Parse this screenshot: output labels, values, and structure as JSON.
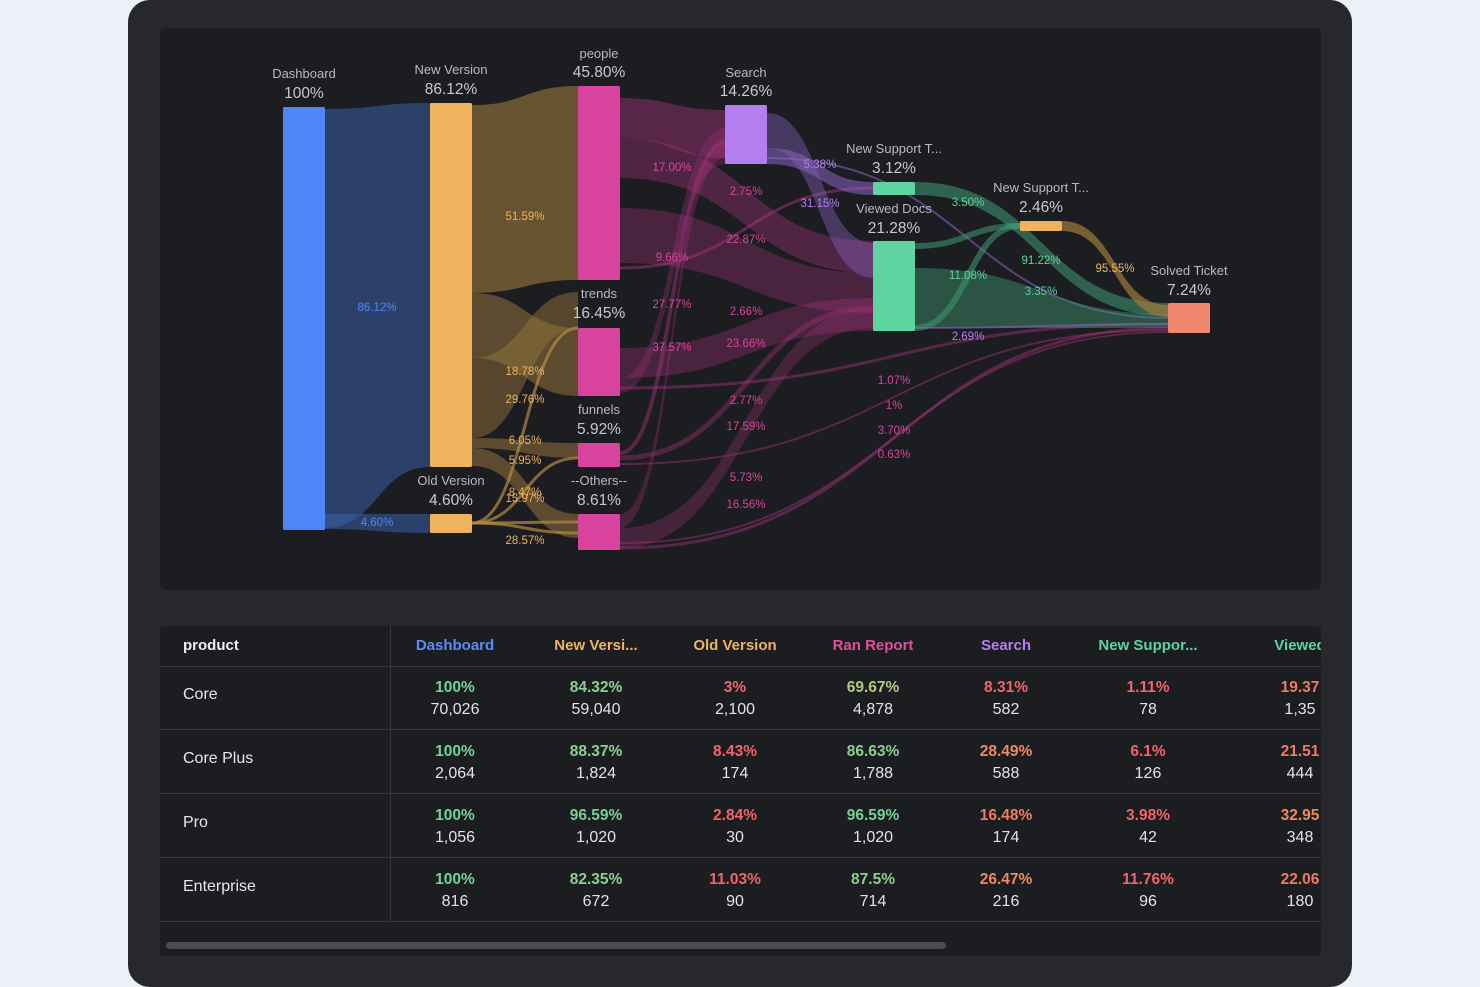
{
  "sankey": {
    "nodes": [
      {
        "id": "dashboard",
        "label": "Dashboard",
        "pct": "100%",
        "color": "#4f86f7"
      },
      {
        "id": "newversion",
        "label": "New Version",
        "pct": "86.12%",
        "color": "#efb35e"
      },
      {
        "id": "oldversion",
        "label": "Old Version",
        "pct": "4.60%",
        "color": "#efb35e"
      },
      {
        "id": "people",
        "label": "people",
        "pct": "45.80%",
        "color": "#d8449d"
      },
      {
        "id": "trends",
        "label": "trends",
        "pct": "16.45%",
        "color": "#d8449d"
      },
      {
        "id": "funnels",
        "label": "funnels",
        "pct": "5.92%",
        "color": "#d8449d"
      },
      {
        "id": "others",
        "label": "--Others--",
        "pct": "8.61%",
        "color": "#d8449d"
      },
      {
        "id": "search",
        "label": "Search",
        "pct": "14.26%",
        "color": "#b57ef0"
      },
      {
        "id": "newsupport1",
        "label": "New Support T...",
        "pct": "3.12%",
        "color": "#5fd3a0"
      },
      {
        "id": "vieweddocs",
        "label": "Viewed Docs",
        "pct": "21.28%",
        "color": "#5fd3a0"
      },
      {
        "id": "newsupport2",
        "label": "New Support T...",
        "pct": "2.46%",
        "color": "#efb35e"
      },
      {
        "id": "solvedticket",
        "label": "Solved Ticket",
        "pct": "7.24%",
        "color": "#ef8670"
      }
    ],
    "link_labels": [
      {
        "text": "86.12%",
        "color": "#4f86f7"
      },
      {
        "text": "4.60%",
        "color": "#4f86f7"
      },
      {
        "text": "51.59%",
        "color": "#efb35e"
      },
      {
        "text": "18.78%",
        "color": "#efb35e"
      },
      {
        "text": "29.76%",
        "color": "#efb35e"
      },
      {
        "text": "6.05%",
        "color": "#efb35e"
      },
      {
        "text": "5.95%",
        "color": "#efb35e"
      },
      {
        "text": "8.47%",
        "color": "#efb35e"
      },
      {
        "text": "15.97%",
        "color": "#efb35e"
      },
      {
        "text": "28.57%",
        "color": "#efb35e"
      },
      {
        "text": "17.00%",
        "color": "#d8449d"
      },
      {
        "text": "9.66%",
        "color": "#d8449d"
      },
      {
        "text": "27.77%",
        "color": "#d8449d"
      },
      {
        "text": "37.57%",
        "color": "#d8449d"
      },
      {
        "text": "2.75%",
        "color": "#d8449d"
      },
      {
        "text": "22.87%",
        "color": "#d8449d"
      },
      {
        "text": "2.66%",
        "color": "#d8449d"
      },
      {
        "text": "23.66%",
        "color": "#d8449d"
      },
      {
        "text": "2.77%",
        "color": "#d8449d"
      },
      {
        "text": "17.59%",
        "color": "#d8449d"
      },
      {
        "text": "5.73%",
        "color": "#d8449d"
      },
      {
        "text": "16.56%",
        "color": "#d8449d"
      },
      {
        "text": "5.38%",
        "color": "#b57ef0"
      },
      {
        "text": "31.15%",
        "color": "#b57ef0"
      },
      {
        "text": "1.07%",
        "color": "#d8449d"
      },
      {
        "text": "1%",
        "color": "#d8449d"
      },
      {
        "text": "3.70%",
        "color": "#d8449d"
      },
      {
        "text": "0.63%",
        "color": "#d8449d"
      },
      {
        "text": "3.50%",
        "color": "#5fd3a0"
      },
      {
        "text": "11.08%",
        "color": "#5fd3a0"
      },
      {
        "text": "91.22%",
        "color": "#5fd3a0"
      },
      {
        "text": "3.35%",
        "color": "#5fd3a0"
      },
      {
        "text": "2.69%",
        "color": "#b57ef0"
      },
      {
        "text": "95.55%",
        "color": "#efb35e"
      }
    ]
  },
  "table": {
    "header_label": "product",
    "columns": [
      {
        "label": "Dashboard",
        "color": "#5b8cf5"
      },
      {
        "label": "New Versi...",
        "color": "#efb35e"
      },
      {
        "label": "Old Version",
        "color": "#efb35e"
      },
      {
        "label": "Ran Report",
        "color": "#e0509f"
      },
      {
        "label": "Search",
        "color": "#b57ef0"
      },
      {
        "label": "New Suppor...",
        "color": "#5fd3a0"
      },
      {
        "label": "Viewed",
        "color": "#5fd3a0"
      }
    ],
    "rows": [
      {
        "product": "Core",
        "cells": [
          {
            "pct": "100%",
            "count": "70,026",
            "color": "#6dd49a"
          },
          {
            "pct": "84.32%",
            "count": "59,040",
            "color": "#8ccf8e"
          },
          {
            "pct": "3%",
            "count": "2,100",
            "color": "#f0646a"
          },
          {
            "pct": "69.67%",
            "count": "4,878",
            "color": "#b4c97c"
          },
          {
            "pct": "8.31%",
            "count": "582",
            "color": "#f0646a"
          },
          {
            "pct": "1.11%",
            "count": "78",
            "color": "#f0646a"
          },
          {
            "pct": "19.37",
            "count": "1,35",
            "color": "#ef7b62"
          }
        ]
      },
      {
        "product": "Core Plus",
        "cells": [
          {
            "pct": "100%",
            "count": "2,064",
            "color": "#6dd49a"
          },
          {
            "pct": "88.37%",
            "count": "1,824",
            "color": "#8ccf8e"
          },
          {
            "pct": "8.43%",
            "count": "174",
            "color": "#f0646a"
          },
          {
            "pct": "86.63%",
            "count": "1,788",
            "color": "#8ccf8e"
          },
          {
            "pct": "28.49%",
            "count": "588",
            "color": "#ef8a5e"
          },
          {
            "pct": "6.1%",
            "count": "126",
            "color": "#f0646a"
          },
          {
            "pct": "21.51",
            "count": "444",
            "color": "#ef7b62"
          }
        ]
      },
      {
        "product": "Pro",
        "cells": [
          {
            "pct": "100%",
            "count": "1,056",
            "color": "#6dd49a"
          },
          {
            "pct": "96.59%",
            "count": "1,020",
            "color": "#74d196"
          },
          {
            "pct": "2.84%",
            "count": "30",
            "color": "#f0646a"
          },
          {
            "pct": "96.59%",
            "count": "1,020",
            "color": "#74d196"
          },
          {
            "pct": "16.48%",
            "count": "174",
            "color": "#ef7b62"
          },
          {
            "pct": "3.98%",
            "count": "42",
            "color": "#f0646a"
          },
          {
            "pct": "32.95",
            "count": "348",
            "color": "#ef8a5e"
          }
        ]
      },
      {
        "product": "Enterprise",
        "cells": [
          {
            "pct": "100%",
            "count": "816",
            "color": "#6dd49a"
          },
          {
            "pct": "82.35%",
            "count": "672",
            "color": "#8ccf8e"
          },
          {
            "pct": "11.03%",
            "count": "90",
            "color": "#f0646a"
          },
          {
            "pct": "87.5%",
            "count": "714",
            "color": "#8ccf8e"
          },
          {
            "pct": "26.47%",
            "count": "216",
            "color": "#ef8a5e"
          },
          {
            "pct": "11.76%",
            "count": "96",
            "color": "#f0646a"
          },
          {
            "pct": "22.06",
            "count": "180",
            "color": "#ef7b62"
          }
        ]
      }
    ]
  }
}
